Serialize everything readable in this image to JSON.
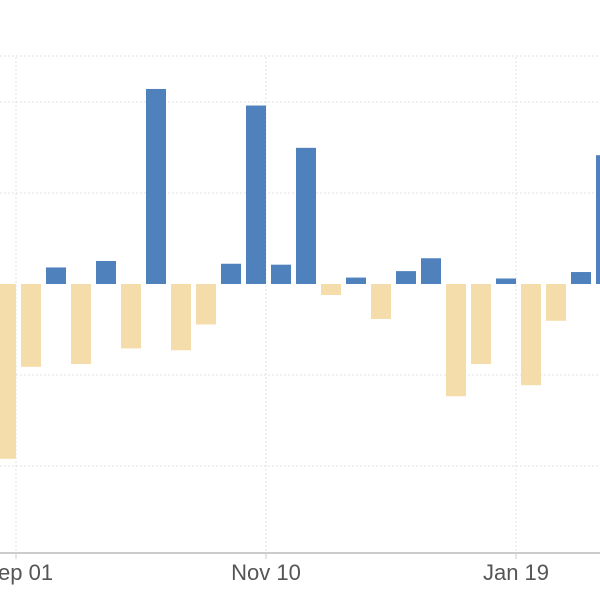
{
  "chart_data": {
    "type": "bar",
    "x_tick_labels": [
      "ep 01",
      "Nov 10",
      "Jan 19"
    ],
    "values": [
      -1.9,
      -0.9,
      0.18,
      -0.87,
      0.25,
      -0.7,
      2.12,
      -0.72,
      -0.44,
      0.22,
      1.94,
      0.21,
      1.48,
      -0.12,
      0.07,
      -0.38,
      0.14,
      0.28,
      -1.22,
      -0.87,
      0.06,
      -1.1,
      -0.4,
      0.13,
      1.4
    ],
    "ylim": [
      -2.9,
      2.45
    ],
    "grid": true,
    "colors": {
      "positive": "#4f81bd",
      "negative": "#f5dcab",
      "grid": "#e2e2e2",
      "axis": "#cccccc"
    }
  }
}
